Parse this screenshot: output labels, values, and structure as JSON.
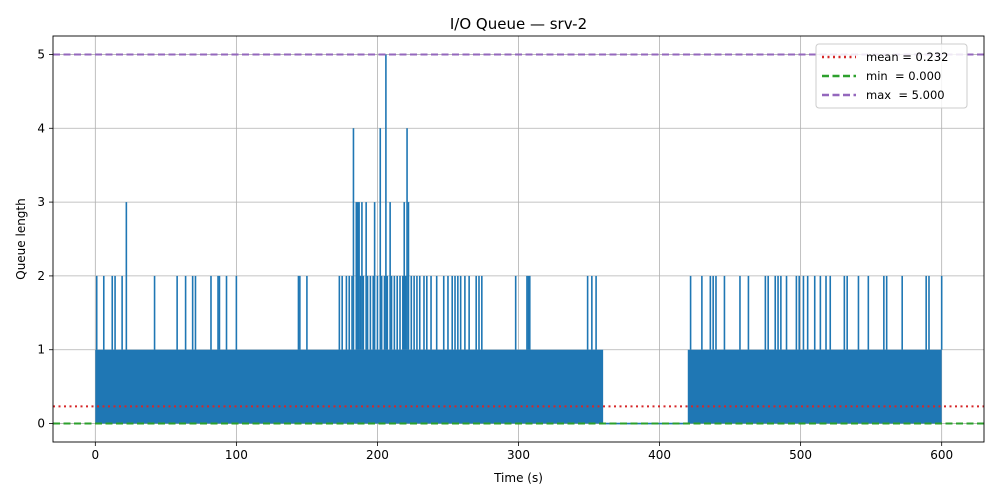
{
  "chart_data": {
    "type": "line",
    "title": "I/O Queue — srv-2",
    "xlabel": "Time (s)",
    "ylabel": "Queue length",
    "xlim": [
      -30,
      630
    ],
    "ylim": [
      -0.25,
      5.25
    ],
    "xticks": [
      0,
      100,
      200,
      300,
      400,
      500,
      600
    ],
    "yticks": [
      0,
      1,
      2,
      3,
      4,
      5
    ],
    "grid": true,
    "legend_position": "top-right",
    "series_color": "#1f77b4",
    "series": [
      {
        "segments": [
          [
            0,
            360
          ],
          [
            420,
            600
          ]
        ],
        "idle": [
          [
            360,
            420
          ]
        ],
        "baseline_range": [
          0,
          1
        ],
        "peaks": [
          [
            1,
            2
          ],
          [
            6,
            2
          ],
          [
            12,
            2
          ],
          [
            14,
            2
          ],
          [
            19,
            2
          ],
          [
            22,
            3
          ],
          [
            42,
            2
          ],
          [
            58,
            2
          ],
          [
            64,
            2
          ],
          [
            69,
            2
          ],
          [
            71,
            2
          ],
          [
            82,
            2
          ],
          [
            87,
            2
          ],
          [
            88,
            2
          ],
          [
            93,
            2
          ],
          [
            100,
            2
          ],
          [
            144,
            2
          ],
          [
            145,
            2
          ],
          [
            150,
            2
          ],
          [
            173,
            2
          ],
          [
            175,
            2
          ],
          [
            178,
            2
          ],
          [
            180,
            2
          ],
          [
            182,
            2
          ],
          [
            183,
            4
          ],
          [
            185,
            3
          ],
          [
            186,
            3
          ],
          [
            187,
            3
          ],
          [
            188,
            2
          ],
          [
            189,
            3
          ],
          [
            190,
            2
          ],
          [
            192,
            3
          ],
          [
            193,
            2
          ],
          [
            195,
            2
          ],
          [
            197,
            2
          ],
          [
            198,
            3
          ],
          [
            200,
            2
          ],
          [
            202,
            4
          ],
          [
            203,
            2
          ],
          [
            205,
            2
          ],
          [
            206,
            5
          ],
          [
            207,
            2
          ],
          [
            209,
            3
          ],
          [
            210,
            2
          ],
          [
            212,
            2
          ],
          [
            214,
            2
          ],
          [
            216,
            2
          ],
          [
            218,
            2
          ],
          [
            219,
            3
          ],
          [
            220,
            2
          ],
          [
            221,
            4
          ],
          [
            222,
            3
          ],
          [
            224,
            2
          ],
          [
            226,
            2
          ],
          [
            228,
            2
          ],
          [
            230,
            2
          ],
          [
            233,
            2
          ],
          [
            235,
            2
          ],
          [
            238,
            2
          ],
          [
            242,
            2
          ],
          [
            247,
            2
          ],
          [
            250,
            2
          ],
          [
            253,
            2
          ],
          [
            255,
            2
          ],
          [
            257,
            2
          ],
          [
            259,
            2
          ],
          [
            262,
            2
          ],
          [
            265,
            2
          ],
          [
            270,
            2
          ],
          [
            272,
            2
          ],
          [
            274,
            2
          ],
          [
            298,
            2
          ],
          [
            306,
            2
          ],
          [
            307,
            2
          ],
          [
            308,
            2
          ],
          [
            349,
            2
          ],
          [
            352,
            2
          ],
          [
            355,
            2
          ],
          [
            422,
            2
          ],
          [
            430,
            2
          ],
          [
            436,
            2
          ],
          [
            438,
            2
          ],
          [
            440,
            2
          ],
          [
            446,
            2
          ],
          [
            457,
            2
          ],
          [
            463,
            2
          ],
          [
            475,
            2
          ],
          [
            477,
            2
          ],
          [
            482,
            2
          ],
          [
            484,
            2
          ],
          [
            486,
            2
          ],
          [
            490,
            2
          ],
          [
            497,
            2
          ],
          [
            499,
            2
          ],
          [
            502,
            2
          ],
          [
            505,
            2
          ],
          [
            510,
            2
          ],
          [
            514,
            2
          ],
          [
            518,
            2
          ],
          [
            521,
            2
          ],
          [
            531,
            2
          ],
          [
            533,
            2
          ],
          [
            541,
            2
          ],
          [
            548,
            2
          ],
          [
            559,
            2
          ],
          [
            561,
            2
          ],
          [
            572,
            2
          ],
          [
            589,
            2
          ],
          [
            591,
            2
          ],
          [
            600,
            2
          ]
        ]
      }
    ],
    "reference_lines": [
      {
        "name": "mean = 0.232",
        "value": 0.232,
        "color": "#d62728",
        "style": "dotted"
      },
      {
        "name": "min  = 0.000",
        "value": 0.0,
        "color": "#2ca02c",
        "style": "dashed"
      },
      {
        "name": "max  = 5.000",
        "value": 5.0,
        "color": "#9467bd",
        "style": "dashed"
      }
    ]
  }
}
